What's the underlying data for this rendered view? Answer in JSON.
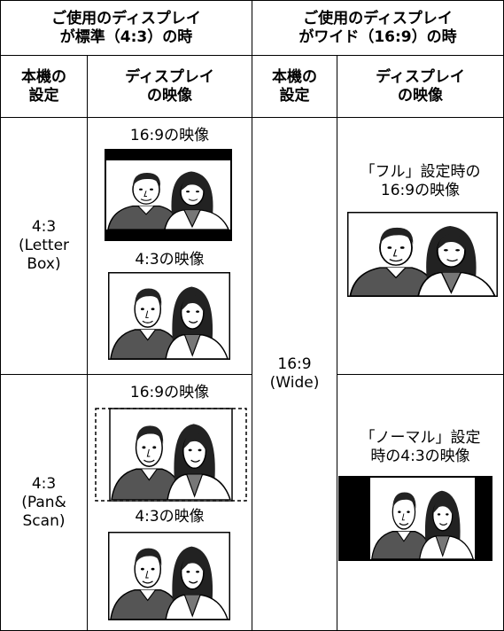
{
  "header": {
    "standard": [
      "ご使用のディスプレイ",
      "が標準（4:3）の時"
    ],
    "wide": [
      "ご使用のディスプレイ",
      "がワイド（16:9）の時"
    ]
  },
  "subheader": [
    [
      "本機の",
      "設定"
    ],
    [
      "ディスプレイ",
      "の映像"
    ],
    [
      "本機の",
      "設定"
    ],
    [
      "ディスプレイ",
      "の映像"
    ]
  ],
  "rows": [
    {
      "setting": [
        "4:3",
        "(Letter",
        "Box)"
      ],
      "captions": [
        "16:9の映像",
        "4:3の映像"
      ]
    },
    {
      "setting": [
        "4:3",
        "(Pan&",
        "Scan)"
      ],
      "captions": [
        "16:9の映像",
        "4:3の映像"
      ]
    }
  ],
  "wide": {
    "setting": [
      "16:9",
      "(Wide)"
    ],
    "captions": [
      [
        "「フル」設定時の",
        "16:9の映像"
      ],
      [
        "「ノーマル」設定",
        "時の4:3の映像"
      ]
    ]
  }
}
